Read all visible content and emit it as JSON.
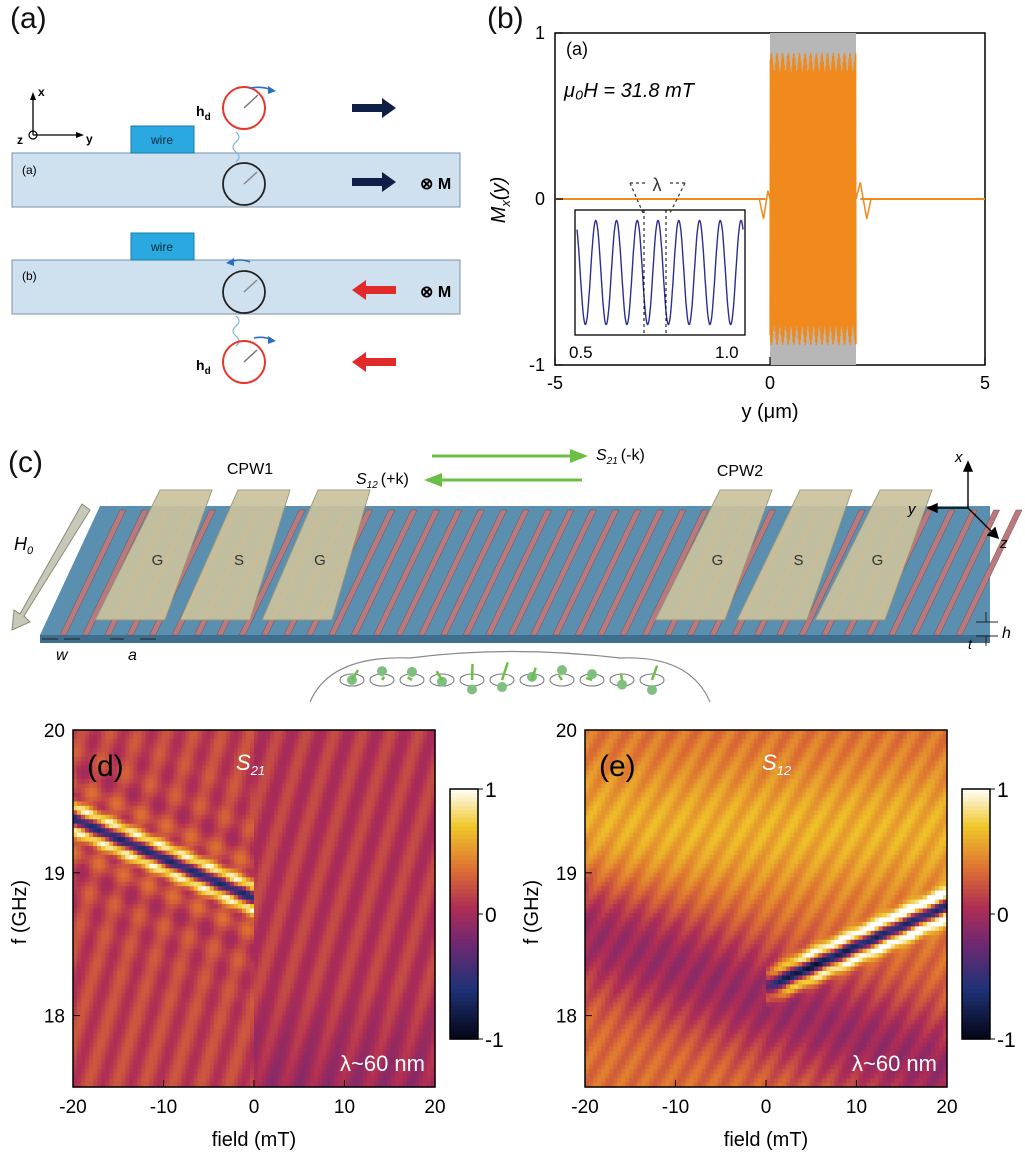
{
  "panel_a": {
    "label": "(a)",
    "axis_x": "x",
    "axis_y": "y",
    "axis_z": "z",
    "wire": "wire",
    "film_a": "(a)",
    "film_b": "(b)",
    "hd": "h",
    "hd_sub": "d",
    "magnetization": "⊗ M",
    "colors": {
      "film": "#cfe0ef",
      "wire": "#29a9df",
      "arrow_dark": "#0f1e46",
      "arrow_red": "#e12b2b"
    }
  },
  "panel_b": {
    "label": "(b)",
    "inner_label": "(a)",
    "field_text": "μ₀H = 31.8 mT",
    "ylabel": "M",
    "ylabel_sub": "x",
    "ylabel_arg": "(y)",
    "xlabel": "y (μm)",
    "lambda": "λ",
    "inset_ticks": [
      "0.5",
      "1.0"
    ],
    "colors": {
      "signal": "#f08a1c",
      "envelope": "#b7b7b7",
      "inset": "#2c2f8f"
    }
  },
  "panel_c": {
    "label": "(c)",
    "cpw1": "CPW1",
    "cpw2": "CPW2",
    "s21": "S",
    "s21_sub": "21",
    "s21_k": "(-k)",
    "s12": "S",
    "s12_sub": "12",
    "s12_k": "(+k)",
    "conductors": [
      "G",
      "S",
      "G",
      "G",
      "S",
      "G"
    ],
    "h0": "H",
    "h0_sub": "0",
    "dim_w": "w",
    "dim_a": "a",
    "dim_h": "h",
    "dim_t": "t",
    "axes": [
      "x",
      "y",
      "z"
    ],
    "colors": {
      "substrate": "#5a8fb0",
      "stripe": "#b97a7e",
      "pad": "#c9c39e",
      "arrow": "#6cbf45"
    }
  },
  "chart_data": [
    {
      "type": "line",
      "panel": "(b)",
      "x_range": [
        -5,
        5
      ],
      "y_range": [
        -1,
        1
      ],
      "xticks": [
        "-5",
        "0",
        "5"
      ],
      "yticks": [
        "1",
        "0",
        "-1"
      ],
      "series": [
        {
          "x": [
            -5,
            -0.1,
            0,
            2,
            2.1,
            5
          ],
          "y": [
            0,
            0,
            0.9,
            0.9,
            0,
            0
          ]
        }
      ]
    },
    {
      "type": "heatmap",
      "panel": "(d)",
      "label": "(d)",
      "title": "S",
      "title_sub": "21",
      "xlabel": "field (mT)",
      "ylabel": "f (GHz)",
      "x_range": [
        -20,
        20
      ],
      "y_range": [
        17.5,
        20
      ],
      "xticks": [
        "-20",
        "-10",
        "0",
        "10",
        "20"
      ],
      "yticks": [
        "20",
        "19",
        "18"
      ],
      "annotation": "λ~60 nm",
      "colorbar_ticks": [
        "1",
        "0",
        "-1"
      ],
      "resonance": {
        "x": [
          -20,
          0
        ],
        "y": [
          19.38,
          18.82
        ]
      }
    },
    {
      "type": "heatmap",
      "panel": "(e)",
      "label": "(e)",
      "title": "S",
      "title_sub": "12",
      "xlabel": "field (mT)",
      "ylabel": "f (GHz)",
      "x_range": [
        -20,
        20
      ],
      "y_range": [
        17.5,
        20
      ],
      "xticks": [
        "-20",
        "-10",
        "0",
        "10",
        "20"
      ],
      "yticks": [
        "20",
        "19",
        "18"
      ],
      "annotation": "λ~60 nm",
      "colorbar_ticks": [
        "1",
        "0",
        "-1"
      ],
      "resonance": {
        "x": [
          0,
          20
        ],
        "y": [
          18.2,
          18.77
        ]
      }
    }
  ]
}
